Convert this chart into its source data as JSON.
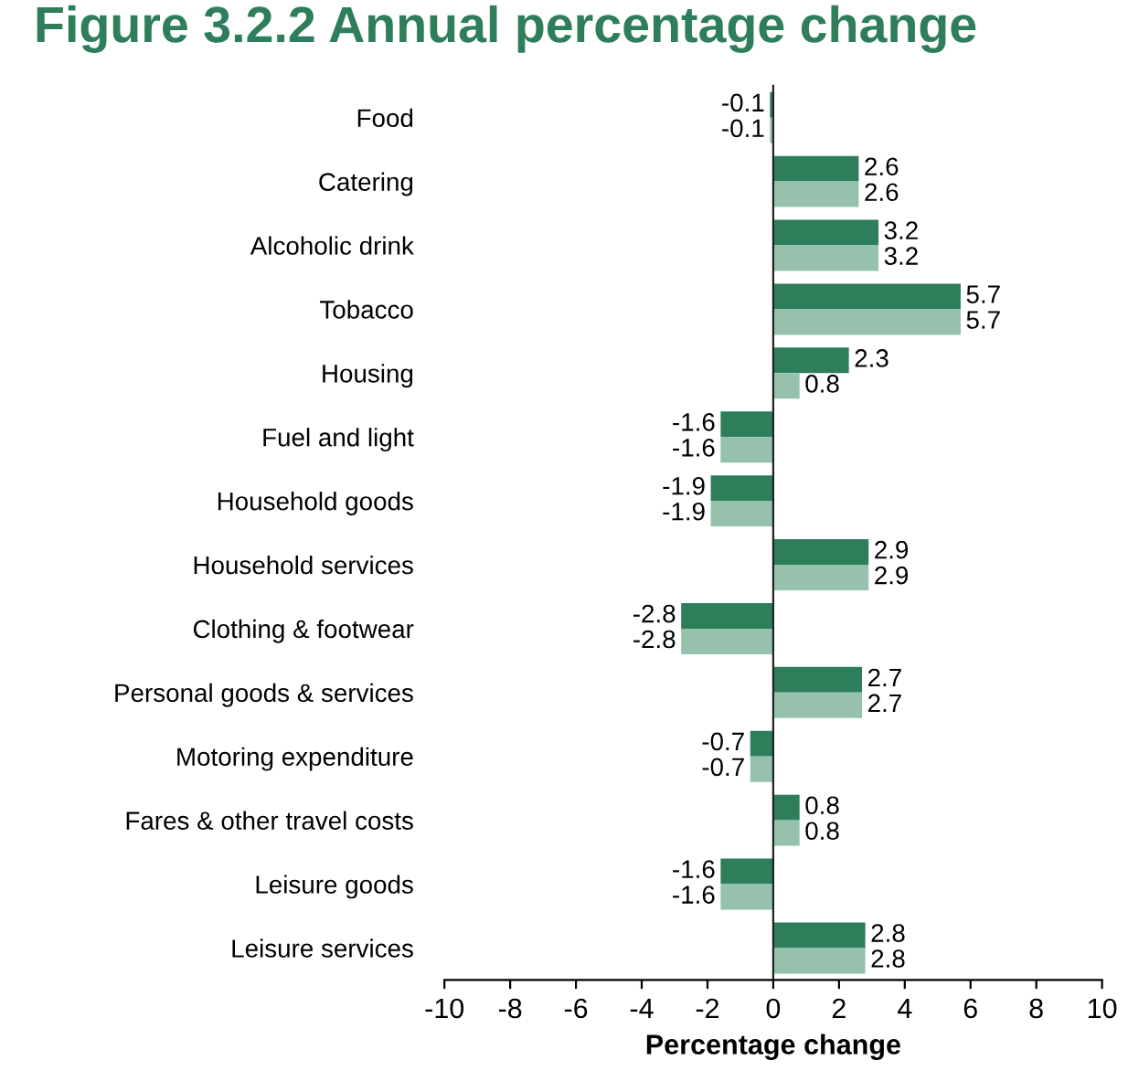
{
  "chart_data": {
    "type": "bar",
    "orientation": "horizontal",
    "title": "Figure 3.2.2 Annual percentage change",
    "xlabel": "Percentage change",
    "categories": [
      "Food",
      "Catering",
      "Alcoholic drink",
      "Tobacco",
      "Housing",
      "Fuel and light",
      "Household goods",
      "Household services",
      "Clothing & footwear",
      "Personal goods & services",
      "Motoring expenditure",
      "Fares & other travel costs",
      "Leisure goods",
      "Leisure services"
    ],
    "series": [
      {
        "color": "#2e7d5b",
        "values": [
          -0.1,
          2.6,
          3.2,
          5.7,
          2.3,
          -1.6,
          -1.9,
          2.9,
          -2.8,
          2.7,
          -0.7,
          0.8,
          -1.6,
          2.8
        ]
      },
      {
        "color": "#96c2ad",
        "values": [
          -0.1,
          2.6,
          3.2,
          5.7,
          0.8,
          -1.6,
          -1.9,
          2.9,
          -2.8,
          2.7,
          -0.7,
          0.8,
          -1.6,
          2.8
        ]
      }
    ],
    "xlim": [
      -10,
      10
    ],
    "xticks": [
      -10,
      -8,
      -6,
      -4,
      -2,
      0,
      2,
      4,
      6,
      8,
      10
    ],
    "data_labels": true
  }
}
